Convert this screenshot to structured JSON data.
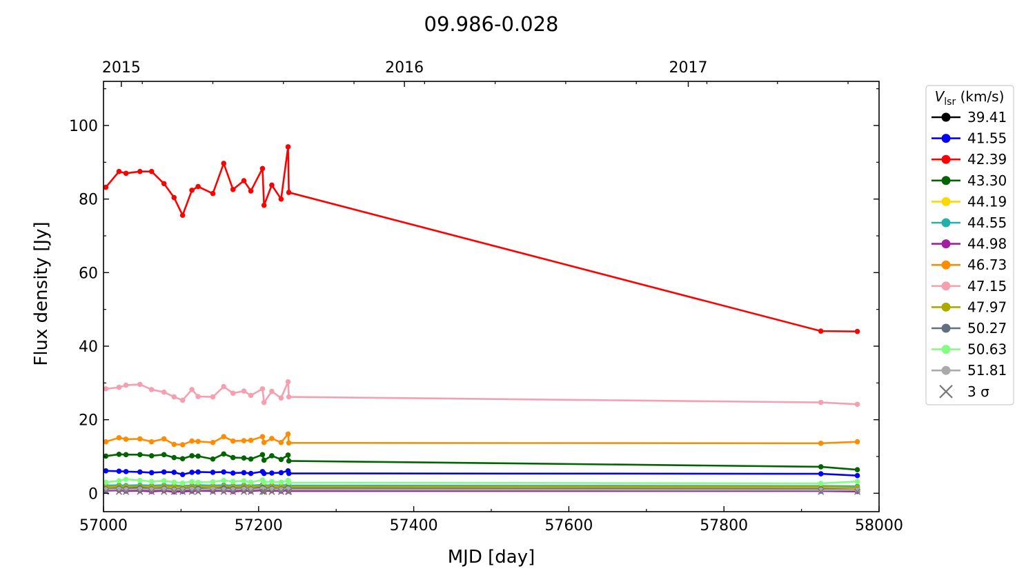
{
  "chart_data": {
    "type": "line",
    "title": "09.986-0.028",
    "xlabel": "MJD [day]",
    "ylabel": "Flux density [Jy]",
    "xlim": [
      57000,
      58000
    ],
    "ylim": [
      -5,
      112
    ],
    "x_ticks": [
      57000,
      57200,
      57400,
      57600,
      57800,
      58000
    ],
    "x_tick_labels": [
      "57000",
      "57200",
      "57400",
      "57600",
      "57800",
      "58000"
    ],
    "y_ticks": [
      0,
      20,
      40,
      60,
      80,
      100
    ],
    "y_tick_labels": [
      "0",
      "20",
      "40",
      "60",
      "80",
      "100"
    ],
    "top_axis": {
      "ticks": [
        57023,
        57388,
        57754
      ],
      "labels": [
        "2015",
        "2016",
        "2017"
      ]
    },
    "legend": {
      "title_var": "V",
      "title_sub": "lsr",
      "title_unit": " (km/s)",
      "placement": "outside-right",
      "sigma_label": "3 σ"
    },
    "x": [
      57003,
      57020,
      57029,
      57047,
      57062,
      57078,
      57091,
      57102,
      57114,
      57122,
      57141,
      57155,
      57167,
      57181,
      57190,
      57205,
      57207,
      57217,
      57229,
      57238,
      57239,
      57925,
      57972
    ],
    "series": [
      {
        "name": "39.41",
        "color": "#000000",
        "values": [
          0.8,
          0.9,
          0.8,
          0.9,
          0.8,
          0.9,
          0.8,
          0.7,
          0.8,
          0.9,
          0.8,
          0.9,
          0.8,
          0.9,
          0.8,
          1.0,
          0.9,
          0.8,
          0.9,
          1.0,
          0.9,
          0.8,
          0.7
        ]
      },
      {
        "name": "41.55",
        "color": "#0000ff",
        "values": [
          6.1,
          6.0,
          5.9,
          5.8,
          5.6,
          5.8,
          5.7,
          5.1,
          5.7,
          5.8,
          5.7,
          5.8,
          5.5,
          5.6,
          5.4,
          5.9,
          5.4,
          5.5,
          5.6,
          6.1,
          5.4,
          5.3,
          4.8
        ]
      },
      {
        "name": "42.39",
        "color": "#ff0000",
        "values": [
          83.2,
          87.5,
          87.0,
          87.5,
          87.5,
          84.2,
          80.4,
          75.6,
          82.4,
          83.4,
          81.5,
          89.7,
          82.6,
          85.0,
          82.2,
          88.3,
          78.3,
          83.8,
          80.0,
          94.2,
          81.8,
          44.1,
          44.0
        ]
      },
      {
        "name": "43.30",
        "color": "#006400",
        "values": [
          10.1,
          10.6,
          10.5,
          10.5,
          10.2,
          10.5,
          9.7,
          9.4,
          10.2,
          10.1,
          9.3,
          10.7,
          9.7,
          9.6,
          9.3,
          10.5,
          9.0,
          10.2,
          9.2,
          10.4,
          8.8,
          7.2,
          6.4
        ]
      },
      {
        "name": "44.19",
        "color": "#ffd700",
        "values": [
          1.6,
          1.6,
          1.5,
          1.6,
          1.5,
          1.6,
          1.5,
          1.4,
          1.5,
          1.6,
          1.5,
          1.6,
          1.5,
          1.6,
          1.5,
          1.7,
          1.5,
          1.6,
          1.5,
          1.7,
          1.5,
          1.5,
          1.4
        ]
      },
      {
        "name": "44.55",
        "color": "#20b2aa",
        "values": [
          2.1,
          2.2,
          2.1,
          2.2,
          2.1,
          2.2,
          2.1,
          2.0,
          2.1,
          2.2,
          2.1,
          2.2,
          2.1,
          2.2,
          2.1,
          2.3,
          2.1,
          2.2,
          2.1,
          2.3,
          2.1,
          2.0,
          1.9
        ]
      },
      {
        "name": "44.98",
        "color": "#a020a0",
        "values": [
          0.7,
          0.8,
          0.6,
          0.7,
          0.5,
          0.7,
          0.4,
          0.5,
          0.6,
          0.7,
          0.6,
          0.7,
          0.5,
          0.7,
          0.6,
          0.8,
          0.6,
          0.7,
          0.6,
          0.8,
          0.6,
          0.6,
          0.5
        ]
      },
      {
        "name": "46.73",
        "color": "#ff8c00",
        "values": [
          14.0,
          15.1,
          14.7,
          14.8,
          14.0,
          14.8,
          13.3,
          13.2,
          14.2,
          14.1,
          13.8,
          15.4,
          14.2,
          14.3,
          14.4,
          15.4,
          13.8,
          14.9,
          13.8,
          16.1,
          13.7,
          13.6,
          14.0
        ]
      },
      {
        "name": "47.15",
        "color": "#f4a0b0",
        "values": [
          28.4,
          28.8,
          29.4,
          29.6,
          28.2,
          27.5,
          26.2,
          25.3,
          28.2,
          26.3,
          26.2,
          29.0,
          27.2,
          27.8,
          26.6,
          28.4,
          24.7,
          27.7,
          25.9,
          30.3,
          26.2,
          24.7,
          24.2
        ]
      },
      {
        "name": "47.97",
        "color": "#aaaa00",
        "values": [
          1.8,
          1.9,
          1.8,
          1.9,
          1.8,
          1.9,
          1.8,
          1.7,
          1.8,
          1.9,
          1.8,
          1.9,
          1.8,
          1.9,
          1.8,
          2.0,
          1.8,
          1.9,
          1.8,
          2.0,
          1.8,
          1.8,
          1.6
        ]
      },
      {
        "name": "50.27",
        "color": "#607080",
        "values": [
          1.2,
          1.4,
          1.3,
          1.5,
          1.2,
          1.4,
          1.1,
          1.2,
          1.3,
          1.4,
          1.2,
          1.5,
          1.3,
          1.4,
          1.2,
          1.6,
          1.3,
          1.4,
          1.2,
          1.6,
          1.3,
          1.2,
          1.0
        ]
      },
      {
        "name": "50.63",
        "color": "#80ff80",
        "values": [
          3.0,
          3.4,
          3.8,
          3.5,
          3.2,
          3.4,
          3.0,
          2.8,
          3.2,
          3.0,
          3.1,
          3.5,
          3.2,
          3.4,
          3.0,
          3.6,
          3.0,
          3.2,
          3.0,
          3.5,
          2.9,
          2.7,
          3.2
        ]
      },
      {
        "name": "51.81",
        "color": "#aaaaaa",
        "values": [
          1.0,
          1.1,
          1.0,
          1.1,
          1.0,
          1.1,
          0.9,
          1.0,
          1.1,
          1.0,
          1.1,
          1.0,
          1.0,
          1.1,
          1.0,
          1.2,
          1.0,
          1.1,
          1.0,
          1.2,
          1.0,
          0.9,
          0.9
        ]
      }
    ],
    "sigma3": {
      "color": "#777777",
      "x": [
        57003,
        57020,
        57029,
        57047,
        57062,
        57078,
        57091,
        57102,
        57114,
        57122,
        57141,
        57155,
        57167,
        57181,
        57190,
        57205,
        57207,
        57217,
        57229,
        57238,
        57239,
        57925,
        57972
      ],
      "values": [
        0.4,
        0.4,
        0.4,
        0.4,
        0.4,
        0.4,
        0.4,
        0.4,
        0.4,
        0.4,
        0.4,
        0.4,
        0.4,
        0.4,
        0.4,
        0.4,
        0.4,
        0.4,
        0.4,
        0.4,
        0.4,
        0.4,
        0.4
      ]
    }
  }
}
